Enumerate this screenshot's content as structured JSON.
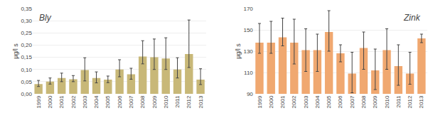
{
  "chart_data": [
    {
      "type": "bar",
      "title": "Bly",
      "ylabel": "µg/l s",
      "categories": [
        "1999",
        "2000",
        "2001",
        "2002",
        "2003",
        "2004",
        "2005",
        "2006",
        "2007",
        "2008",
        "2009",
        "2010",
        "2011",
        "2012",
        "2013"
      ],
      "values": [
        0.04,
        0.05,
        0.065,
        0.06,
        0.098,
        0.065,
        0.058,
        0.1,
        0.08,
        0.153,
        0.15,
        0.145,
        0.1,
        0.163,
        0.058
      ],
      "errors_low": [
        0.01,
        0.01,
        0.015,
        0.01,
        0.045,
        0.02,
        0.012,
        0.03,
        0.02,
        0.03,
        0.05,
        0.045,
        0.035,
        0.055,
        0.02
      ],
      "errors_high": [
        0.015,
        0.015,
        0.02,
        0.015,
        0.05,
        0.025,
        0.015,
        0.04,
        0.025,
        0.065,
        0.075,
        0.085,
        0.048,
        0.14,
        0.045
      ],
      "color": "#c8b878",
      "ylim": [
        0.0,
        0.35
      ],
      "yticks": [
        {
          "value": 0.0,
          "label": "0,00"
        },
        {
          "value": 0.05,
          "label": "0,05"
        },
        {
          "value": 0.1,
          "label": "0,10"
        },
        {
          "value": 0.15,
          "label": "0,15"
        },
        {
          "value": 0.2,
          "label": "0,20"
        },
        {
          "value": 0.25,
          "label": "0,25"
        },
        {
          "value": 0.3,
          "label": "0,30"
        },
        {
          "value": 0.35,
          "label": "0,35"
        }
      ],
      "grid": true
    },
    {
      "type": "bar",
      "title": "Zink",
      "ylabel": "µg/l s",
      "categories": [
        "1999",
        "2000",
        "2001",
        "2002",
        "2003",
        "2004",
        "2005",
        "2006",
        "2007",
        "2008",
        "2009",
        "2010",
        "2011",
        "2012",
        "2013"
      ],
      "values": [
        138,
        138,
        143,
        138,
        131,
        131,
        148,
        128,
        109,
        133,
        112,
        131,
        116,
        109,
        142
      ],
      "errors_low": [
        10,
        10,
        8,
        20,
        20,
        20,
        18,
        8,
        18,
        20,
        18,
        18,
        18,
        10,
        4
      ],
      "errors_high": [
        18,
        20,
        18,
        22,
        20,
        15,
        20,
        8,
        20,
        15,
        20,
        20,
        20,
        20,
        4
      ],
      "color": "#f0a870",
      "ylim": [
        90,
        170
      ],
      "yticks": [
        90,
        110,
        130,
        150,
        170
      ],
      "grid": true
    }
  ]
}
